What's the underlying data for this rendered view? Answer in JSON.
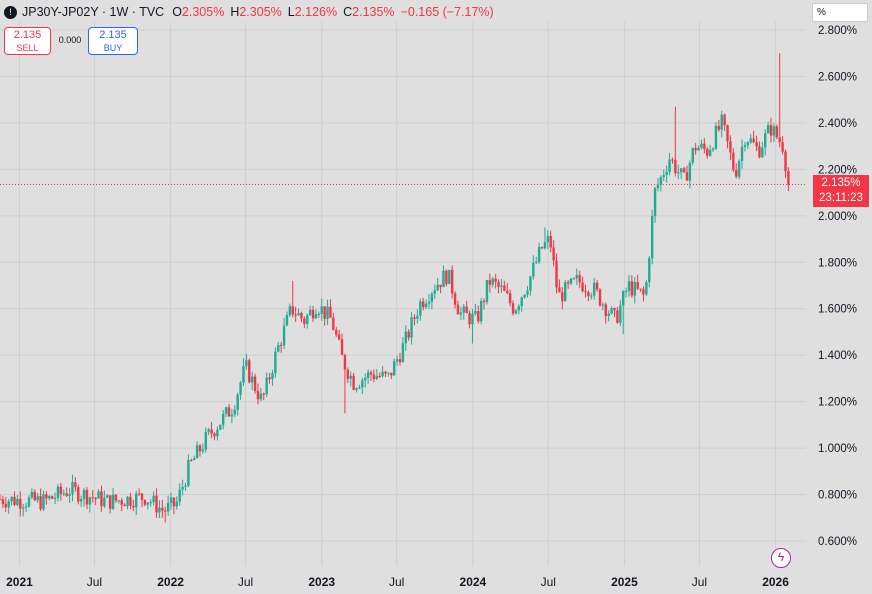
{
  "header": {
    "symbol": "JP30Y-JP02Y · 1W · TVC",
    "open_label": "O",
    "open": "2.305%",
    "high_label": "H",
    "high": "2.305%",
    "low_label": "L",
    "low": "2.126%",
    "close_label": "C",
    "close": "2.135%",
    "change": "−0.165 (−7.17%)"
  },
  "trade": {
    "sell_price": "2.135",
    "sell_label": "SELL",
    "spread": "0.000",
    "buy_price": "2.135",
    "buy_label": "BUY"
  },
  "unit": "%",
  "current_price": {
    "value": "2.135%",
    "countdown": "23:11:23"
  },
  "colors": {
    "up": "#22ab94",
    "down": "#f23645",
    "grid": "#cfcfcf",
    "background": "#dfdfdf"
  },
  "icons": {
    "symbol": "symbol-logo-icon",
    "bolt": "lightning-icon"
  },
  "chart_data": {
    "type": "candlestick",
    "interval": "1W",
    "ylim": [
      0.5,
      2.8
    ],
    "y_ticks": [
      "2.800%",
      "2.600%",
      "2.400%",
      "2.200%",
      "2.000%",
      "1.800%",
      "1.600%",
      "1.400%",
      "1.200%",
      "1.000%",
      "0.800%",
      "0.600%"
    ],
    "y_tick_values": [
      2.8,
      2.6,
      2.4,
      2.2,
      2.0,
      1.8,
      1.6,
      1.4,
      1.2,
      1.0,
      0.8,
      0.6
    ],
    "x_ticks": [
      {
        "label": "2021",
        "date": "2021-01-01",
        "major": true
      },
      {
        "label": "Jul",
        "date": "2021-07-01",
        "major": false
      },
      {
        "label": "2022",
        "date": "2022-01-01",
        "major": true
      },
      {
        "label": "Jul",
        "date": "2022-07-01",
        "major": false
      },
      {
        "label": "2023",
        "date": "2023-01-01",
        "major": true
      },
      {
        "label": "Jul",
        "date": "2023-07-01",
        "major": false
      },
      {
        "label": "2024",
        "date": "2024-01-01",
        "major": true
      },
      {
        "label": "Jul",
        "date": "2024-07-01",
        "major": false
      },
      {
        "label": "2025",
        "date": "2025-01-01",
        "major": true
      },
      {
        "label": "Jul",
        "date": "2025-07-01",
        "major": false
      },
      {
        "label": "2026",
        "date": "2026-01-01",
        "major": true
      }
    ],
    "x_range": [
      "2020-11-15",
      "2026-03-01"
    ],
    "last_close": 2.135,
    "close_anchors": [
      [
        "2020-11-15",
        0.78
      ],
      [
        "2021-03-01",
        0.77
      ],
      [
        "2021-05-01",
        0.82
      ],
      [
        "2021-08-01",
        0.77
      ],
      [
        "2021-11-01",
        0.79
      ],
      [
        "2021-12-15",
        0.73
      ],
      [
        "2022-01-15",
        0.76
      ],
      [
        "2022-02-15",
        0.92
      ],
      [
        "2022-04-01",
        1.05
      ],
      [
        "2022-06-01",
        1.18
      ],
      [
        "2022-07-01",
        1.35
      ],
      [
        "2022-08-10",
        1.2
      ],
      [
        "2022-09-15",
        1.42
      ],
      [
        "2022-10-20",
        1.6
      ],
      [
        "2022-11-20",
        1.55
      ],
      [
        "2022-12-20",
        1.62
      ],
      [
        "2023-01-25",
        1.55
      ],
      [
        "2023-02-20",
        1.38
      ],
      [
        "2023-03-20",
        1.28
      ],
      [
        "2023-05-01",
        1.32
      ],
      [
        "2023-06-10",
        1.3
      ],
      [
        "2023-07-20",
        1.45
      ],
      [
        "2023-08-25",
        1.62
      ],
      [
        "2023-10-01",
        1.7
      ],
      [
        "2023-11-01",
        1.75
      ],
      [
        "2023-12-01",
        1.58
      ],
      [
        "2024-01-10",
        1.55
      ],
      [
        "2024-02-10",
        1.72
      ],
      [
        "2024-03-10",
        1.68
      ],
      [
        "2024-04-10",
        1.6
      ],
      [
        "2024-05-15",
        1.72
      ],
      [
        "2024-06-15",
        1.86
      ],
      [
        "2024-07-05",
        1.9
      ],
      [
        "2024-07-25",
        1.65
      ],
      [
        "2024-09-10",
        1.72
      ],
      [
        "2024-10-20",
        1.68
      ],
      [
        "2024-12-10",
        1.55
      ],
      [
        "2025-01-10",
        1.7
      ],
      [
        "2025-02-20",
        1.65
      ],
      [
        "2025-03-15",
        2.1
      ],
      [
        "2025-04-20",
        2.25
      ],
      [
        "2025-05-25",
        2.15
      ],
      [
        "2025-06-20",
        2.3
      ],
      [
        "2025-07-20",
        2.28
      ],
      [
        "2025-08-25",
        2.4
      ],
      [
        "2025-09-25",
        2.18
      ],
      [
        "2025-10-20",
        2.35
      ],
      [
        "2025-11-20",
        2.28
      ],
      [
        "2025-12-20",
        2.38
      ],
      [
        "2026-01-20",
        2.3
      ],
      [
        "2026-02-01",
        2.135
      ]
    ],
    "notable_highs": [
      [
        "2026-01-10",
        2.7
      ],
      [
        "2025-05-01",
        2.47
      ],
      [
        "2024-06-20",
        1.95
      ],
      [
        "2022-10-20",
        1.72
      ]
    ],
    "notable_lows": [
      [
        "2021-12-20",
        0.68
      ],
      [
        "2023-03-01",
        1.15
      ],
      [
        "2024-01-01",
        1.45
      ],
      [
        "2025-01-01",
        1.49
      ]
    ]
  }
}
